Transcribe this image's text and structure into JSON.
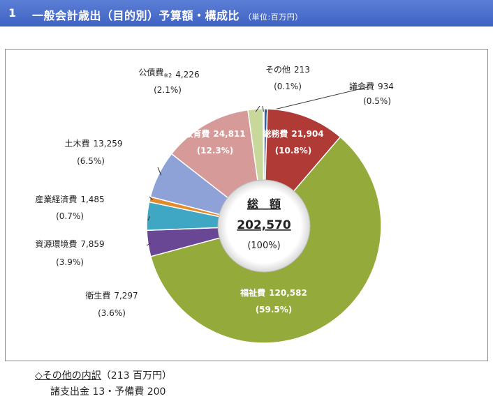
{
  "header": {
    "number": "1",
    "title": "一般会計歳出（目的別）予算額・構成比",
    "unit": "（単位:百万円）",
    "color": "#4a6fd0"
  },
  "chart_data": {
    "type": "pie",
    "variant": "donut",
    "center": {
      "title": "総　額",
      "total": "202,570",
      "percent": "(100%)"
    },
    "slices": [
      {
        "name": "議会費",
        "value": 934,
        "value_label": "934",
        "percent": "(0.5%)",
        "color": "#3a5fa8",
        "label_inside": false
      },
      {
        "name": "総務費",
        "value": 21904,
        "value_label": "21,904",
        "percent": "(10.8%)",
        "color": "#b03a35",
        "label_inside": true
      },
      {
        "name": "福祉費",
        "value": 120582,
        "value_label": "120,582",
        "percent": "(59.5%)",
        "color": "#94aa3a",
        "label_inside": true
      },
      {
        "name": "衛生費",
        "value": 7297,
        "value_label": "7,297",
        "percent": "(3.6%)",
        "color": "#6a4795",
        "label_inside": false
      },
      {
        "name": "資源環境費",
        "value": 7859,
        "value_label": "7,859",
        "percent": "(3.9%)",
        "color": "#3fa6c4",
        "label_inside": false
      },
      {
        "name": "産業経済費",
        "value": 1485,
        "value_label": "1,485",
        "percent": "(0.7%)",
        "color": "#e58a2a",
        "label_inside": false
      },
      {
        "name": "土木費",
        "value": 13259,
        "value_label": "13,259",
        "percent": "(6.5%)",
        "color": "#8ea2d8",
        "label_inside": false
      },
      {
        "name": "教育費",
        "value": 24811,
        "value_label": "24,811",
        "percent": "(12.3%)",
        "color": "#d69a98",
        "label_inside": true
      },
      {
        "name": "公債費",
        "name_note": "※2",
        "value": 4226,
        "value_label": "4,226",
        "percent": "(2.1%)",
        "color": "#c8d79a",
        "label_inside": false
      },
      {
        "name": "その他",
        "value": 213,
        "value_label": "213",
        "percent": "(0.1%)",
        "color": "#2c3e7c",
        "label_inside": false
      }
    ]
  },
  "note": {
    "title": "◇その他の内訳",
    "amount": "（213 百万円）",
    "detail": "諸支出金 13・予備費 200"
  }
}
